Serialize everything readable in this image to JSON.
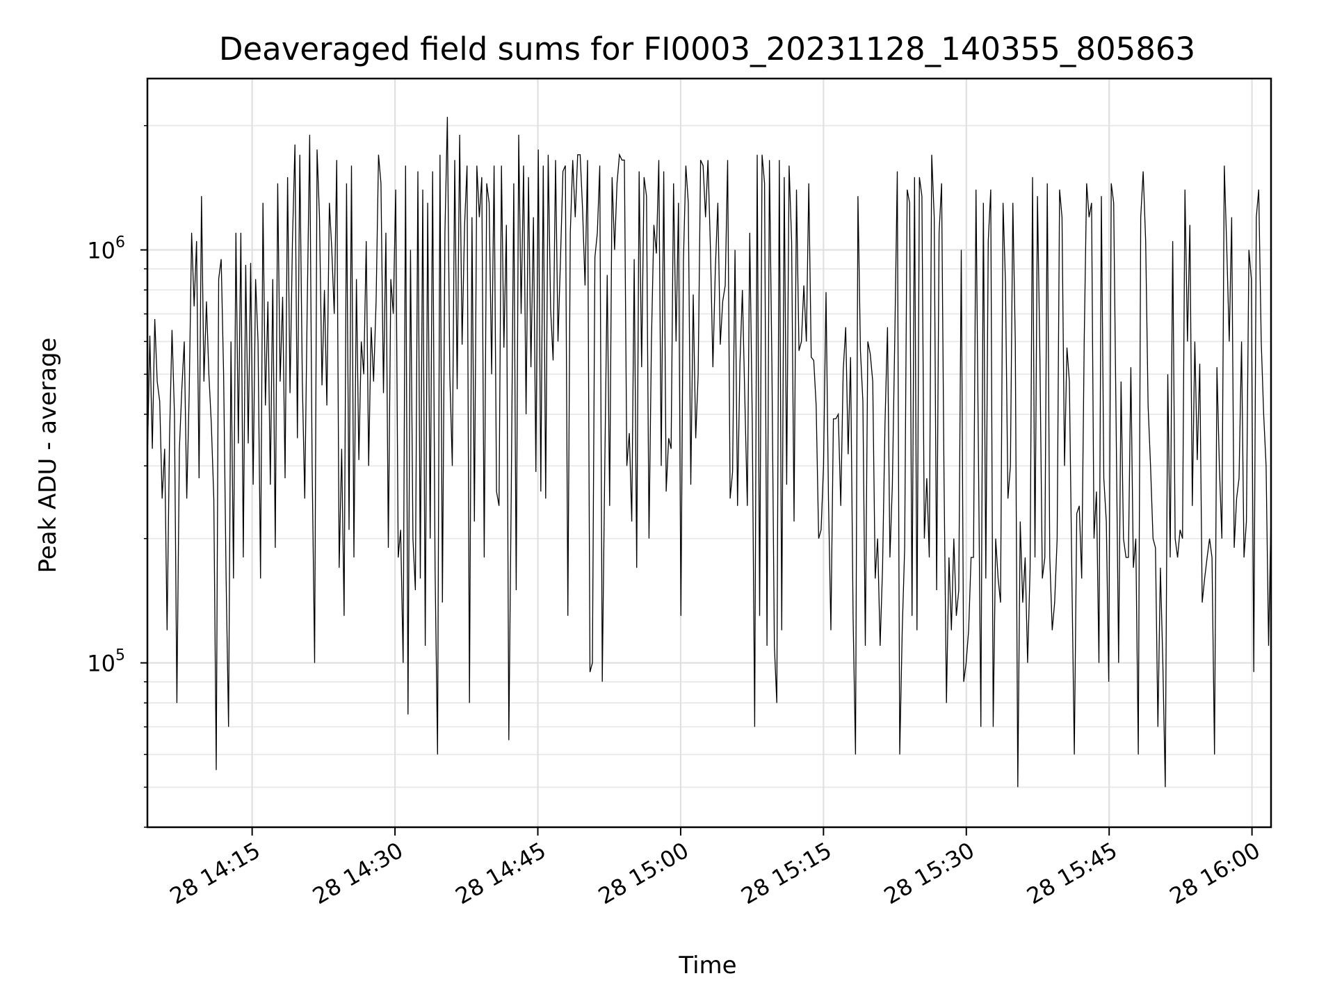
{
  "chart_data": {
    "type": "line",
    "title": "Deaveraged field sums for FI0003_20231128_140355_805863",
    "xlabel": "Time",
    "ylabel": "Peak ADU - average",
    "y_scale": "log",
    "ylim": [
      40000,
      2600000
    ],
    "xlim": [
      "2023-11-28 14:04",
      "2023-11-28 16:02"
    ],
    "grid": true,
    "line_color": "#000000",
    "x_ticks": [
      {
        "value": "2023-11-28 14:15",
        "label": "28 14:15"
      },
      {
        "value": "2023-11-28 14:30",
        "label": "28 14:30"
      },
      {
        "value": "2023-11-28 14:45",
        "label": "28 14:45"
      },
      {
        "value": "2023-11-28 15:00",
        "label": "28 15:00"
      },
      {
        "value": "2023-11-28 15:15",
        "label": "28 15:15"
      },
      {
        "value": "2023-11-28 15:30",
        "label": "28 15:30"
      },
      {
        "value": "2023-11-28 15:45",
        "label": "28 15:45"
      },
      {
        "value": "2023-11-28 16:00",
        "label": "28 16:00"
      }
    ],
    "y_ticks": [
      {
        "value": 100000,
        "base": "10",
        "exp": "5"
      },
      {
        "value": 1000000,
        "base": "10",
        "exp": "6"
      }
    ],
    "series": [
      {
        "x_start": "2023-11-28 14:04",
        "x_end": "2023-11-28 16:02",
        "values": [
          310000,
          620000,
          330000,
          680000,
          480000,
          430000,
          250000,
          330000,
          120000,
          350000,
          640000,
          400000,
          80000,
          330000,
          460000,
          600000,
          250000,
          450000,
          1100000,
          730000,
          1050000,
          280000,
          1350000,
          480000,
          750000,
          500000,
          380000,
          250000,
          55000,
          850000,
          950000,
          500000,
          160000,
          70000,
          600000,
          160000,
          1100000,
          340000,
          1100000,
          180000,
          920000,
          340000,
          930000,
          270000,
          850000,
          600000,
          160000,
          1300000,
          420000,
          750000,
          270000,
          850000,
          190000,
          1450000,
          480000,
          770000,
          280000,
          1500000,
          450000,
          1050000,
          1800000,
          350000,
          1700000,
          480000,
          250000,
          720000,
          1900000,
          300000,
          100000,
          1750000,
          1200000,
          470000,
          800000,
          420000,
          1300000,
          1000000,
          700000,
          1650000,
          170000,
          330000,
          130000,
          1450000,
          210000,
          1600000,
          180000,
          850000,
          310000,
          600000,
          500000,
          1050000,
          300000,
          650000,
          480000,
          750000,
          1700000,
          1450000,
          450000,
          1100000,
          190000,
          850000,
          700000,
          1400000,
          180000,
          210000,
          100000,
          1600000,
          75000,
          1000000,
          200000,
          150000,
          1550000,
          160000,
          1400000,
          110000,
          1300000,
          200000,
          1550000,
          170000,
          60000,
          1700000,
          140000,
          1100000,
          2100000,
          500000,
          300000,
          1650000,
          460000,
          1900000,
          590000,
          1150000,
          1600000,
          80000,
          1200000,
          220000,
          1600000,
          1200000,
          1500000,
          180000,
          1450000,
          1300000,
          500000,
          1600000,
          260000,
          240000,
          1600000,
          580000,
          1150000,
          65000,
          260000,
          1450000,
          150000,
          1900000,
          700000,
          1600000,
          400000,
          1500000,
          520000,
          1200000,
          290000,
          1750000,
          260000,
          1600000,
          250000,
          1700000,
          720000,
          540000,
          1650000,
          600000,
          950000,
          1550000,
          1600000,
          130000,
          1100000,
          1650000,
          1200000,
          1700000,
          1700000,
          1250000,
          820000,
          1650000,
          95000,
          100000,
          960000,
          1100000,
          1600000,
          90000,
          290000,
          870000,
          240000,
          1500000,
          1000000,
          1450000,
          1700000,
          1650000,
          1650000,
          300000,
          360000,
          220000,
          950000,
          170000,
          1550000,
          520000,
          1500000,
          1350000,
          200000,
          600000,
          1150000,
          980000,
          1650000,
          300000,
          1550000,
          260000,
          350000,
          330000,
          1450000,
          600000,
          1300000,
          130000,
          940000,
          1600000,
          1300000,
          270000,
          780000,
          350000,
          500000,
          1650000,
          1600000,
          1200000,
          1650000,
          1000000,
          520000,
          900000,
          1300000,
          590000,
          750000,
          820000,
          1650000,
          250000,
          290000,
          1000000,
          240000,
          530000,
          800000,
          430000,
          240000,
          1100000,
          390000,
          70000,
          1700000,
          130000,
          1700000,
          1450000,
          110000,
          1650000,
          520000,
          110000,
          80000,
          1650000,
          120000,
          1500000,
          270000,
          1600000,
          1050000,
          220000,
          1400000,
          570000,
          600000,
          820000,
          600000,
          1450000,
          550000,
          540000,
          420000,
          200000,
          210000,
          300000,
          790000,
          250000,
          120000,
          390000,
          390000,
          400000,
          240000,
          510000,
          650000,
          320000,
          550000,
          130000,
          60000,
          1350000,
          570000,
          430000,
          110000,
          600000,
          560000,
          480000,
          160000,
          200000,
          110000,
          170000,
          380000,
          650000,
          180000,
          270000,
          630000,
          1550000,
          60000,
          120000,
          190000,
          1400000,
          1300000,
          130000,
          1500000,
          120000,
          1500000,
          1350000,
          200000,
          280000,
          180000,
          1700000,
          1200000,
          150000,
          1100000,
          1450000,
          280000,
          80000,
          180000,
          120000,
          200000,
          130000,
          150000,
          1000000,
          90000,
          100000,
          120000,
          180000,
          180000,
          1400000,
          320000,
          70000,
          1300000,
          160000,
          1050000,
          1400000,
          70000,
          200000,
          160000,
          140000,
          1300000,
          830000,
          250000,
          300000,
          1300000,
          600000,
          50000,
          220000,
          140000,
          180000,
          100000,
          170000,
          1500000,
          180000,
          1350000,
          550000,
          160000,
          180000,
          1450000,
          180000,
          120000,
          140000,
          200000,
          1400000,
          1200000,
          300000,
          580000,
          480000,
          160000,
          60000,
          230000,
          240000,
          160000,
          600000,
          1450000,
          1200000,
          1300000,
          200000,
          260000,
          100000,
          1350000,
          280000,
          220000,
          90000,
          1450000,
          1300000,
          380000,
          100000,
          480000,
          200000,
          180000,
          180000,
          520000,
          170000,
          200000,
          60000,
          1200000,
          1550000,
          1050000,
          420000,
          300000,
          200000,
          190000,
          70000,
          170000,
          100000,
          50000,
          500000,
          180000,
          1050000,
          200000,
          180000,
          210000,
          200000,
          1400000,
          600000,
          1150000,
          240000,
          600000,
          310000,
          530000,
          140000,
          160000,
          180000,
          200000,
          180000,
          60000,
          520000,
          300000,
          200000,
          1600000,
          1000000,
          600000,
          1200000,
          190000,
          250000,
          280000,
          600000,
          180000,
          220000,
          1000000,
          850000,
          95000,
          1200000,
          1400000,
          600000,
          400000,
          300000,
          110000,
          230000
        ]
      }
    ]
  }
}
